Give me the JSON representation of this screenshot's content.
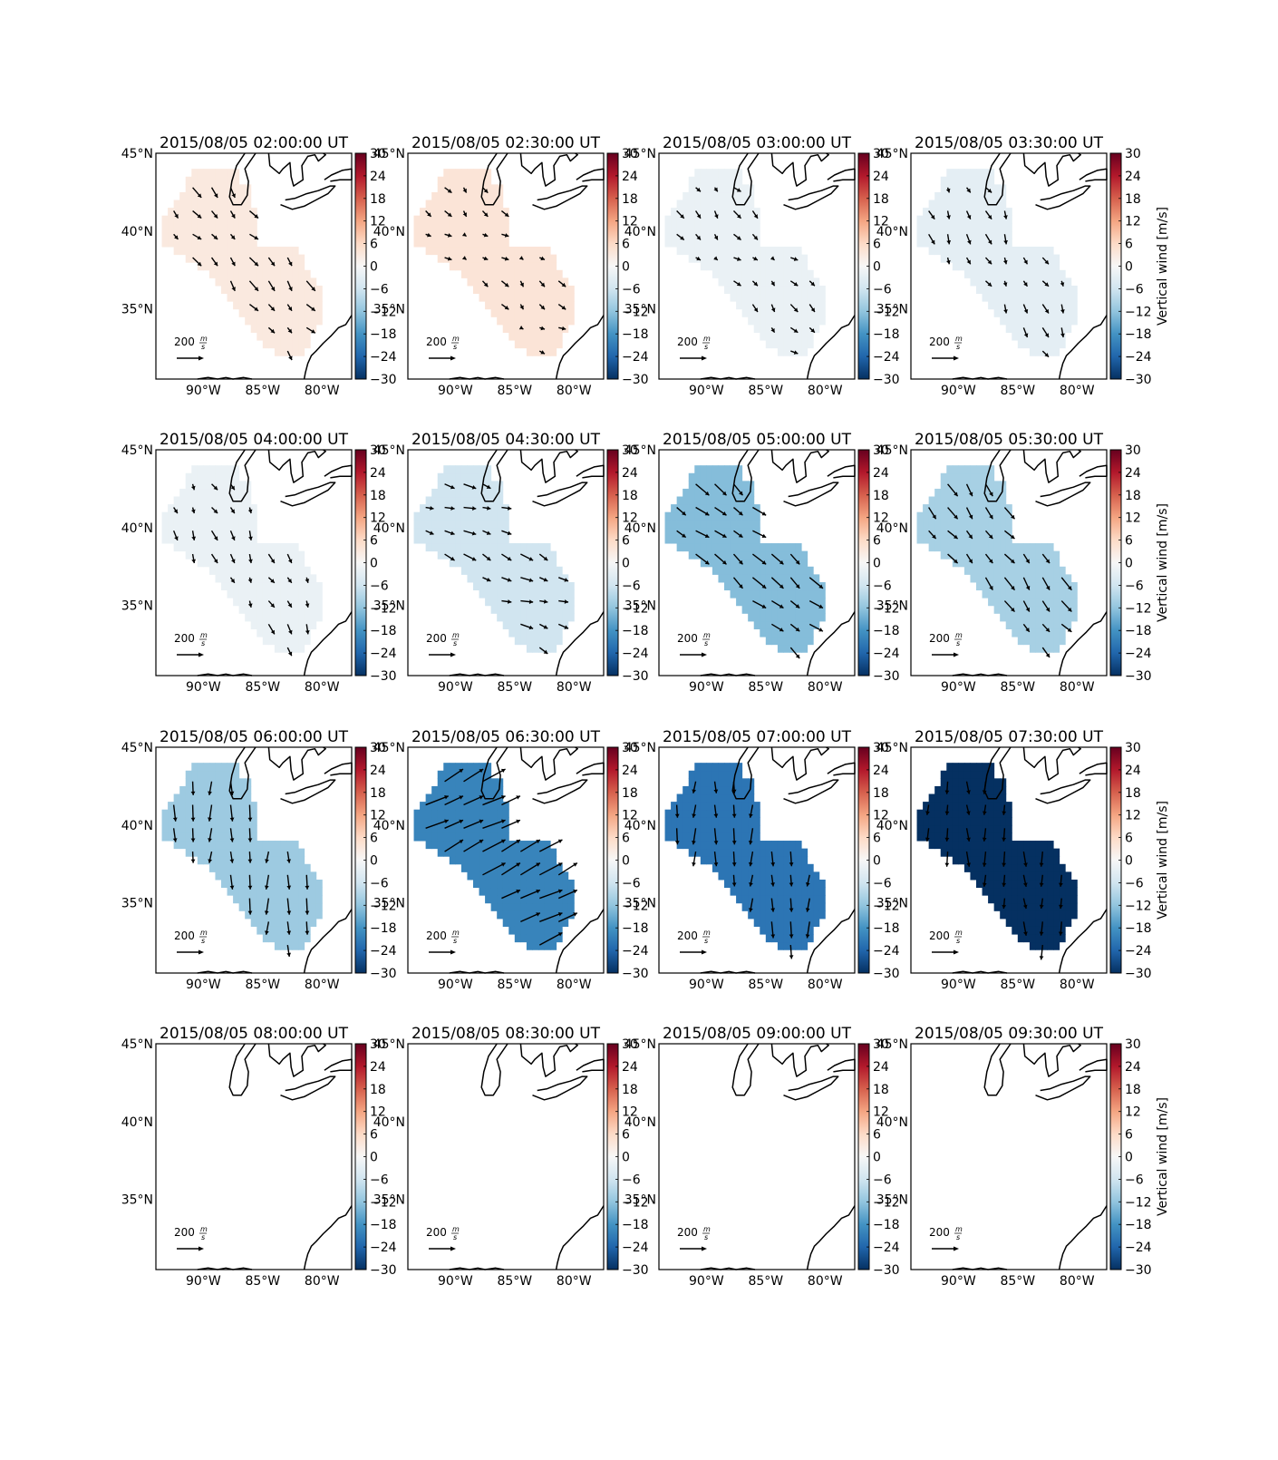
{
  "figure": {
    "panels": [
      {
        "title": "2015/08/05 02:00:00 UT",
        "vertical_wind": 3
      },
      {
        "title": "2015/08/05 02:30:00 UT",
        "vertical_wind": 4
      },
      {
        "title": "2015/08/05 03:00:00 UT",
        "vertical_wind": -2
      },
      {
        "title": "2015/08/05 03:30:00 UT",
        "vertical_wind": -3
      },
      {
        "title": "2015/08/05 04:00:00 UT",
        "vertical_wind": -2
      },
      {
        "title": "2015/08/05 04:30:00 UT",
        "vertical_wind": -6
      },
      {
        "title": "2015/08/05 05:00:00 UT",
        "vertical_wind": -13
      },
      {
        "title": "2015/08/05 05:30:00 UT",
        "vertical_wind": -10
      },
      {
        "title": "2015/08/05 06:00:00 UT",
        "vertical_wind": -11
      },
      {
        "title": "2015/08/05 06:30:00 UT",
        "vertical_wind": -20
      },
      {
        "title": "2015/08/05 07:00:00 UT",
        "vertical_wind": -22
      },
      {
        "title": "2015/08/05 07:30:00 UT",
        "vertical_wind": -30
      },
      {
        "title": "2015/08/05 08:00:00 UT",
        "vertical_wind": null
      },
      {
        "title": "2015/08/05 08:30:00 UT",
        "vertical_wind": null
      },
      {
        "title": "2015/08/05 09:00:00 UT",
        "vertical_wind": null
      },
      {
        "title": "2015/08/05 09:30:00 UT",
        "vertical_wind": null
      }
    ],
    "lat_ticks": [
      "45°N",
      "40°N",
      "35°N"
    ],
    "lon_ticks": [
      "90°W",
      "85°W",
      "80°W"
    ],
    "colorbar": {
      "label": "Vertical wind [m/s]",
      "ticks": [
        "30",
        "24",
        "18",
        "12",
        "6",
        "0",
        "−6",
        "−12",
        "−18",
        "−24",
        "−30"
      ],
      "range": [
        -30,
        30
      ],
      "colormap": [
        "#053061",
        "#2166ac",
        "#4393c3",
        "#92c5de",
        "#d1e5f0",
        "#f7f7f7",
        "#fddbc7",
        "#f4a582",
        "#d6604d",
        "#b2182b",
        "#67001f"
      ]
    },
    "scale_arrow": {
      "label": "200",
      "unit_num": "m",
      "unit_den": "s"
    }
  },
  "chart_data": {
    "type": "heatmap",
    "description": "Vertical wind over eastern US, 16 timesteps, 2015/08/05 02:00–09:30 UT",
    "x_axis": {
      "ticks": [
        "90°W",
        "85°W",
        "80°W"
      ],
      "range": [
        -94,
        -77.5
      ]
    },
    "y_axis": {
      "ticks": [
        "35°N",
        "40°N",
        "45°N"
      ],
      "range": [
        30.5,
        45
      ]
    },
    "colorbar_range": [
      -30,
      30
    ],
    "series": [
      {
        "name": "2015/08/05 02:00:00 UT",
        "value": 3
      },
      {
        "name": "2015/08/05 02:30:00 UT",
        "value": 4
      },
      {
        "name": "2015/08/05 03:00:00 UT",
        "value": -2
      },
      {
        "name": "2015/08/05 03:30:00 UT",
        "value": -3
      },
      {
        "name": "2015/08/05 04:00:00 UT",
        "value": -2
      },
      {
        "name": "2015/08/05 04:30:00 UT",
        "value": -6
      },
      {
        "name": "2015/08/05 05:00:00 UT",
        "value": -13
      },
      {
        "name": "2015/08/05 05:30:00 UT",
        "value": -10
      },
      {
        "name": "2015/08/05 06:00:00 UT",
        "value": -11
      },
      {
        "name": "2015/08/05 06:30:00 UT",
        "value": -20
      },
      {
        "name": "2015/08/05 07:00:00 UT",
        "value": -22
      },
      {
        "name": "2015/08/05 07:30:00 UT",
        "value": -30
      },
      {
        "name": "2015/08/05 08:00:00 UT",
        "value": null
      },
      {
        "name": "2015/08/05 08:30:00 UT",
        "value": null
      },
      {
        "name": "2015/08/05 09:00:00 UT",
        "value": null
      },
      {
        "name": "2015/08/05 09:30:00 UT",
        "value": null
      }
    ]
  }
}
